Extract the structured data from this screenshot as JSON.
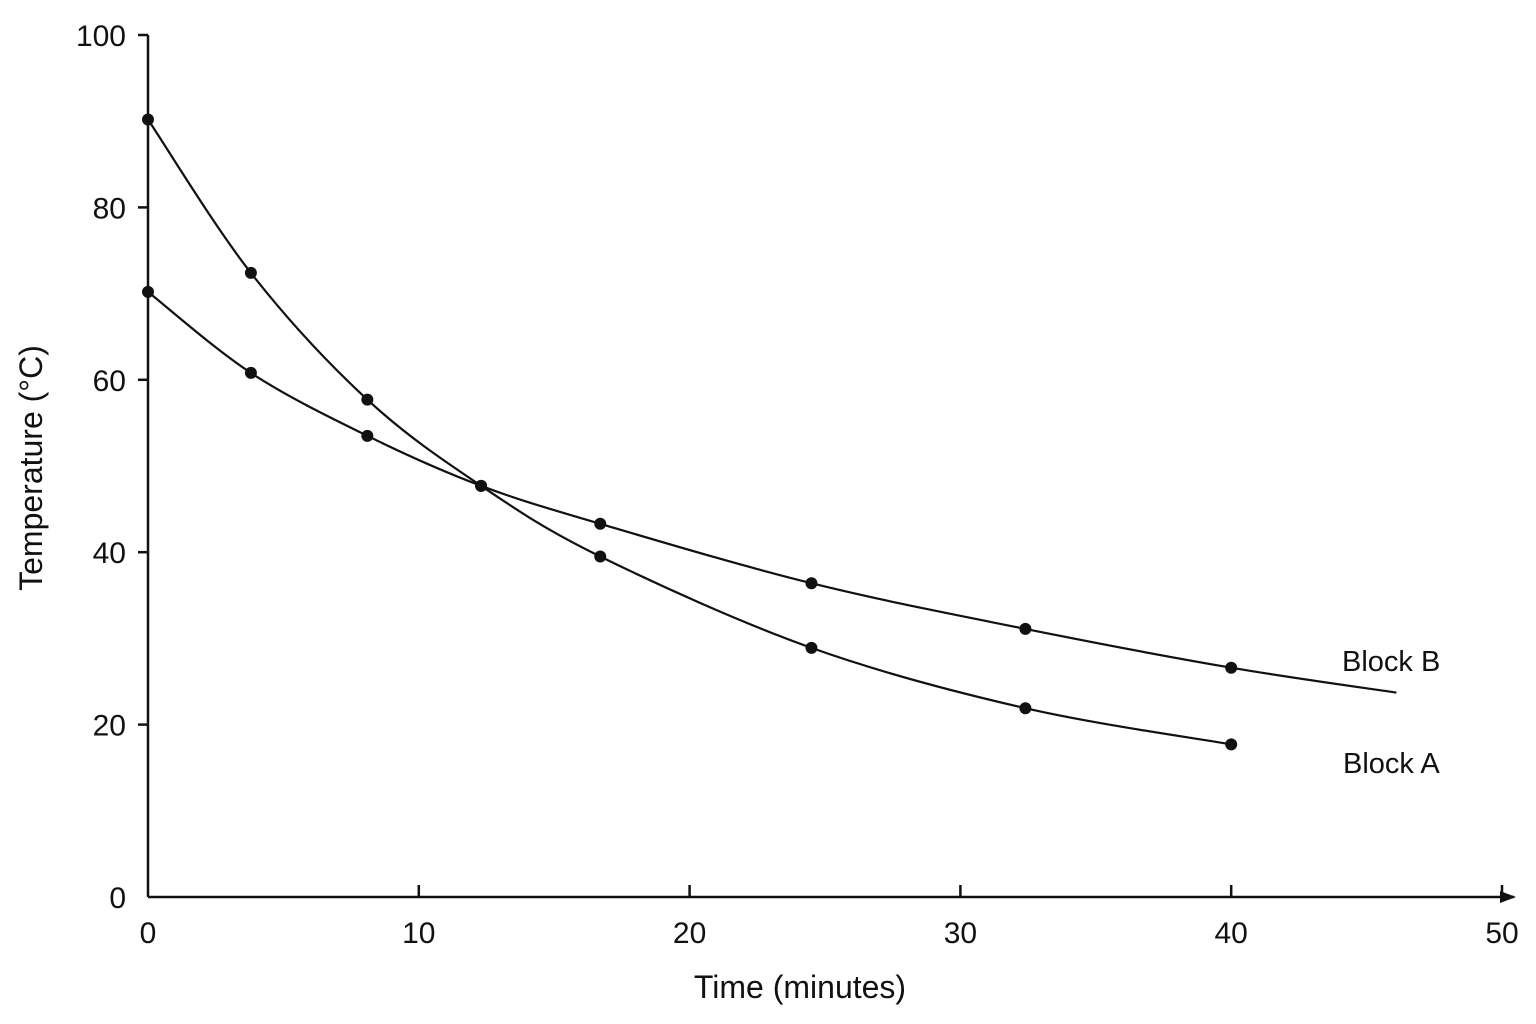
{
  "chart_data": {
    "type": "line",
    "title": "",
    "xlabel": "Time (minutes)",
    "ylabel": "Temperature (°C)",
    "xlim": [
      0,
      50
    ],
    "ylim": [
      0,
      100
    ],
    "xticks": [
      "0",
      "10",
      "20",
      "30",
      "40",
      "50"
    ],
    "yticks": [
      "0",
      "20",
      "40",
      "60",
      "80",
      "100"
    ],
    "grid": false,
    "legend": "none",
    "series": [
      {
        "name": "Block A",
        "x": [
          0,
          3.8,
          8.1,
          12.3,
          16.7,
          24.5,
          32.4,
          40
        ],
        "y": [
          90.2,
          72.4,
          57.7,
          47.7,
          39.5,
          28.9,
          21.9,
          17.7
        ],
        "curve_end_x": 40
      },
      {
        "name": "Block B",
        "x": [
          0,
          3.8,
          8.1,
          12.3,
          16.7,
          24.5,
          32.4,
          40
        ],
        "y": [
          70.2,
          60.8,
          53.5,
          47.7,
          43.3,
          36.4,
          31.1,
          26.6
        ],
        "curve_end_x": 46.1
      }
    ],
    "colors": {
      "line": "#111111",
      "marker": "#111111",
      "axis": "#111111"
    }
  }
}
